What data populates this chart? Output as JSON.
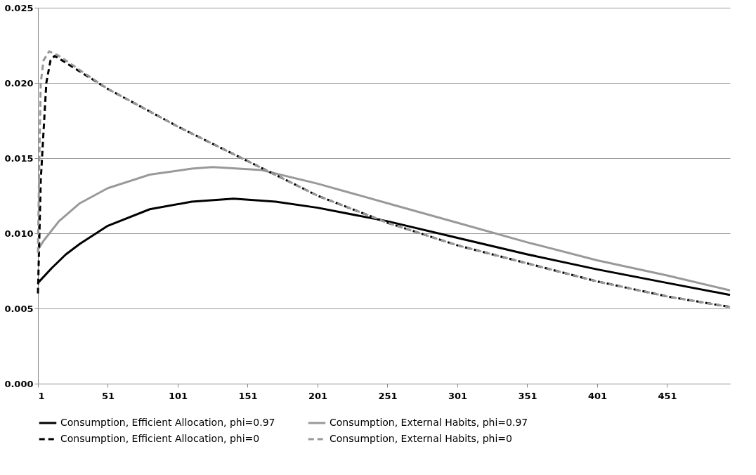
{
  "chart_data": {
    "type": "line",
    "xlim": [
      1,
      496
    ],
    "xticks": [
      1,
      51,
      101,
      151,
      201,
      251,
      301,
      351,
      401,
      451
    ],
    "ylim": [
      0,
      0.025
    ],
    "yticks": [
      {
        "value": 0,
        "label": "0.000"
      },
      {
        "value": 0.005,
        "label": "0.005"
      },
      {
        "value": 0.01,
        "label": "0.010"
      },
      {
        "value": 0.015,
        "label": "0.015"
      },
      {
        "value": 0.02,
        "label": "0.020"
      },
      {
        "value": 0.025,
        "label": "0.025"
      }
    ],
    "grid": "y",
    "legend": "bottom",
    "marker": "none",
    "series": [
      {
        "name": "Consumption, Efficient Allocation, phi=0.97",
        "color": "#000000",
        "line_style": "solid",
        "x": [
          1,
          11,
          21,
          31,
          51,
          81,
          111,
          141,
          171,
          201,
          251,
          301,
          351,
          401,
          451,
          496
        ],
        "values": [
          0.0067,
          0.0077,
          0.0086,
          0.0093,
          0.0105,
          0.0116,
          0.0121,
          0.0123,
          0.0121,
          0.0117,
          0.0108,
          0.0097,
          0.0086,
          0.0076,
          0.0067,
          0.0059
        ]
      },
      {
        "name": "Consumption, External Habits, phi=0.97",
        "color": "#999999",
        "line_style": "solid",
        "x": [
          1,
          5,
          16,
          31,
          51,
          81,
          111,
          126,
          161,
          201,
          251,
          301,
          351,
          401,
          451,
          496
        ],
        "values": [
          0.0089,
          0.0095,
          0.0108,
          0.012,
          0.013,
          0.0139,
          0.0143,
          0.0144,
          0.0142,
          0.0133,
          0.012,
          0.0107,
          0.0094,
          0.0082,
          0.0072,
          0.0062
        ]
      },
      {
        "name": "Consumption, Efficient Allocation, phi=0",
        "color": "#000000",
        "line_style": "dashed",
        "x": [
          1,
          3,
          7,
          10,
          13,
          51,
          101,
          151,
          201,
          251,
          301,
          351,
          401,
          451,
          496
        ],
        "values": [
          0.006,
          0.0135,
          0.02,
          0.0215,
          0.0218,
          0.0196,
          0.0171,
          0.0148,
          0.0125,
          0.0107,
          0.0092,
          0.008,
          0.0068,
          0.0058,
          0.0051
        ]
      },
      {
        "name": "Consumption, External Habits, phi=0",
        "color": "#999999",
        "line_style": "dashed",
        "x": [
          1,
          2,
          3,
          5,
          9,
          16,
          51,
          101,
          151,
          201,
          251,
          301,
          351,
          401,
          451,
          496
        ],
        "values": [
          0.0087,
          0.015,
          0.02,
          0.0215,
          0.0221,
          0.0218,
          0.0196,
          0.0171,
          0.0148,
          0.0125,
          0.0107,
          0.0092,
          0.008,
          0.0068,
          0.0058,
          0.0051
        ]
      }
    ]
  }
}
